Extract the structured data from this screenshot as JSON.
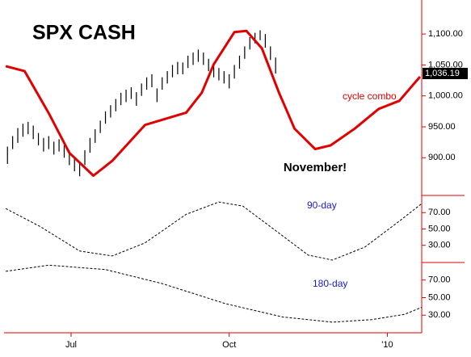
{
  "chart_data": [
    {
      "type": "hilo",
      "title": "SPX CASH",
      "annotation": "November!",
      "x": [
        -7,
        -4,
        -1,
        2,
        5,
        8,
        11,
        14,
        17,
        20,
        23,
        26,
        29,
        32,
        35,
        38,
        41,
        44,
        47,
        50,
        53,
        56,
        59,
        62,
        65,
        68,
        71,
        74,
        77,
        80,
        83,
        86,
        89,
        92,
        95,
        98,
        101,
        104,
        107,
        110,
        113,
        116,
        119,
        122,
        125,
        128,
        131,
        134,
        137,
        140,
        143,
        146,
        149
      ],
      "high": [
        918,
        935,
        948,
        955,
        958,
        952,
        940,
        932,
        935,
        926,
        930,
        920,
        912,
        902,
        890,
        912,
        932,
        946,
        960,
        975,
        985,
        995,
        1005,
        1010,
        1014,
        1006,
        1020,
        1030,
        1035,
        1012,
        1030,
        1040,
        1050,
        1055,
        1054,
        1065,
        1070,
        1075,
        1070,
        1060,
        1050,
        1045,
        1040,
        1035,
        1050,
        1065,
        1080,
        1095,
        1102,
        1106,
        1100,
        1080,
        1062
      ],
      "low": [
        890,
        914,
        924,
        934,
        938,
        930,
        920,
        910,
        914,
        905,
        910,
        900,
        888,
        878,
        870,
        888,
        908,
        924,
        940,
        955,
        965,
        975,
        985,
        990,
        995,
        984,
        1000,
        1010,
        1014,
        990,
        1010,
        1020,
        1030,
        1035,
        1035,
        1045,
        1050,
        1055,
        1050,
        1040,
        1030,
        1025,
        1020,
        1012,
        1028,
        1044,
        1060,
        1075,
        1085,
        1090,
        1078,
        1058,
        1036
      ],
      "color": "#000000",
      "last_price": {
        "value": 1036.19,
        "label": "1,036.19"
      },
      "lines": [
        {
          "name": "cycle combo",
          "color": "#e00000",
          "x": [
            -8,
            3,
            17,
            29,
            43,
            54,
            73,
            97,
            106,
            113,
            125,
            132,
            141,
            151,
            160,
            172,
            181,
            195,
            209,
            221,
            233
          ],
          "values": [
            1048,
            1040,
            972,
            908,
            871,
            895,
            953,
            973,
            1005,
            1051,
            1103,
            1105,
            1077,
            1005,
            947,
            914,
            920,
            947,
            979,
            992,
            1031
          ]
        }
      ],
      "xlim": [
        -9,
        234
      ],
      "ylim": [
        839,
        1155
      ],
      "yticks": [
        {
          "value": 900,
          "label": "900.00"
        },
        {
          "value": 950,
          "label": "950.00"
        },
        {
          "value": 1000,
          "label": "1,000.00"
        },
        {
          "value": 1050,
          "label": "1,050.00"
        },
        {
          "value": 1100,
          "label": "1,100.00"
        }
      ]
    },
    {
      "type": "line",
      "label_color": "#1a1acc",
      "series": [
        {
          "name": "90-day",
          "color": "#000000",
          "x": [
            -8,
            12,
            35,
            54,
            73,
            97,
            116,
            130,
            149,
            168,
            182,
            201,
            220,
            234
          ],
          "values": [
            75,
            53,
            23,
            17,
            33,
            68,
            83,
            78,
            48,
            18,
            12,
            28,
            58,
            81
          ]
        }
      ],
      "xlim": [
        -9,
        234
      ],
      "ylim": [
        9,
        91
      ],
      "yticks": [
        {
          "value": 30,
          "label": "30.00"
        },
        {
          "value": 50,
          "label": "50.00"
        },
        {
          "value": 70,
          "label": "70.00"
        }
      ]
    },
    {
      "type": "line",
      "label_color": "#1a1acc",
      "series": [
        {
          "name": "180-day",
          "color": "#000000",
          "x": [
            -8,
            17,
            50,
            83,
            120,
            153,
            182,
            205,
            224,
            234
          ],
          "values": [
            80,
            87,
            82,
            66,
            43,
            28,
            22,
            25,
            31,
            39
          ]
        }
      ],
      "xlim": [
        -9,
        234
      ],
      "ylim": [
        10,
        90
      ],
      "yticks": [
        {
          "value": 30,
          "label": "30.00"
        },
        {
          "value": 50,
          "label": "50.00"
        },
        {
          "value": 70,
          "label": "70.00"
        }
      ],
      "xticks": [
        {
          "value": 30,
          "label": "Jul"
        },
        {
          "value": 122,
          "label": "Oct"
        },
        {
          "value": 214,
          "label": "'10"
        }
      ]
    }
  ]
}
